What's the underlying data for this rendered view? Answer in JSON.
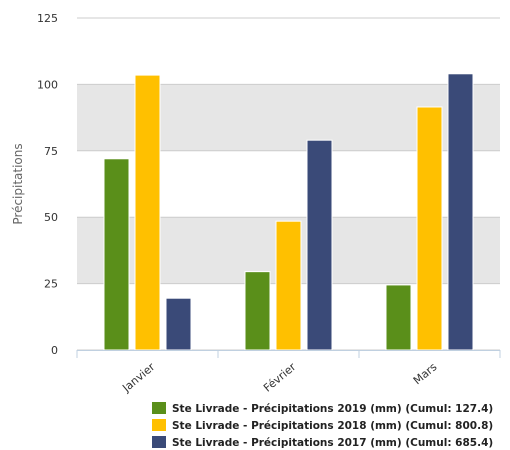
{
  "chart_data": {
    "type": "bar",
    "title": "",
    "xlabel": "",
    "ylabel": "Précipitations",
    "ylim": [
      0,
      125
    ],
    "yticks": [
      0,
      25,
      50,
      75,
      100,
      125
    ],
    "categories": [
      "Janvier",
      "Février",
      "Mars"
    ],
    "series": [
      {
        "name": "Ste Livrade - Précipitations 2019 (mm) (Cumul: 127.4)",
        "color": "#5a8f1a",
        "values": [
          72,
          29.5,
          24.5
        ]
      },
      {
        "name": "Ste Livrade - Précipitations 2018 (mm) (Cumul: 800.8)",
        "color": "#ffc000",
        "values": [
          103.5,
          48.5,
          91.5
        ]
      },
      {
        "name": "Ste Livrade - Précipitations 2017 (mm) (Cumul: 685.4)",
        "color": "#3a4a78",
        "values": [
          19.5,
          79,
          104
        ]
      }
    ],
    "grid": true,
    "legend_position": "bottom-center",
    "colors": {
      "plot_band": "#e6e6e6",
      "plot_band_alt": "#ffffff",
      "grid": "#cccccc"
    }
  }
}
